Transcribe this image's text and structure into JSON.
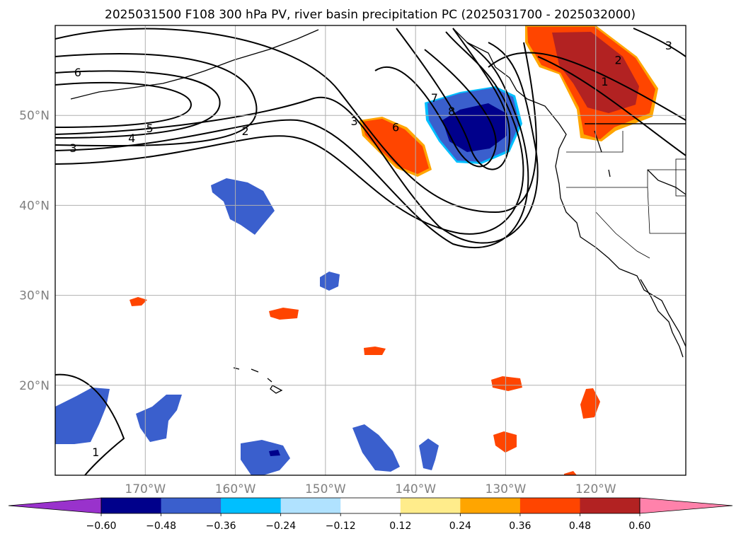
{
  "chart_data": {
    "type": "map-contour",
    "title": "2025031500 F108 300 hPa PV, river basin precipitation PC (2025031700 - 2025032000)",
    "projection": "PlateCarree",
    "lon_range": [
      -180,
      -110
    ],
    "lat_range": [
      10,
      60
    ],
    "grid": true,
    "lon_ticks": [
      -170,
      -160,
      -150,
      -140,
      -130,
      -120
    ],
    "lon_tick_labels": [
      "170°W",
      "160°W",
      "150°W",
      "140°W",
      "130°W",
      "120°W"
    ],
    "lat_ticks": [
      20,
      30,
      40,
      50
    ],
    "lat_tick_labels": [
      "20°N",
      "30°N",
      "40°N",
      "50°N"
    ],
    "pv_contour_labels": [
      {
        "text": "6",
        "lon": -177.5,
        "lat": 54.8
      },
      {
        "text": "5",
        "lon": -169.5,
        "lat": 48.6
      },
      {
        "text": "4",
        "lon": -171.5,
        "lat": 47.5
      },
      {
        "text": "3",
        "lon": -178.0,
        "lat": 46.4
      },
      {
        "text": "2",
        "lon": -158.9,
        "lat": 48.3
      },
      {
        "text": "3",
        "lon": -146.8,
        "lat": 49.4
      },
      {
        "text": "6",
        "lon": -142.2,
        "lat": 48.7
      },
      {
        "text": "7",
        "lon": -137.9,
        "lat": 52.0
      },
      {
        "text": "8",
        "lon": -136.0,
        "lat": 50.5
      },
      {
        "text": "2",
        "lon": -117.5,
        "lat": 56.2
      },
      {
        "text": "1",
        "lon": -119.0,
        "lat": 53.8
      },
      {
        "text": "3",
        "lon": -111.9,
        "lat": 57.8
      },
      {
        "text": "1",
        "lon": -175.5,
        "lat": 12.6
      }
    ],
    "precip_pc_colorbar": {
      "levels": [
        -0.6,
        -0.48,
        -0.36,
        -0.24,
        -0.12,
        0.12,
        0.24,
        0.36,
        0.48,
        0.6
      ],
      "tick_labels": [
        "−0.60",
        "−0.48",
        "−0.36",
        "−0.24",
        "−0.12",
        "0.12",
        "0.24",
        "0.36",
        "0.48",
        "0.60"
      ],
      "colors": [
        "#9932cc",
        "#00008b",
        "#3a5fcd",
        "#00bfff",
        "#b0e2ff",
        "#ffffff",
        "#ffec8b",
        "#ffa500",
        "#ff4500",
        "#b22222",
        "#ff82ab"
      ],
      "extend": "both"
    },
    "colors": {
      "contour": "#000000",
      "grid": "#b0b0b0",
      "frame": "#000000"
    }
  }
}
